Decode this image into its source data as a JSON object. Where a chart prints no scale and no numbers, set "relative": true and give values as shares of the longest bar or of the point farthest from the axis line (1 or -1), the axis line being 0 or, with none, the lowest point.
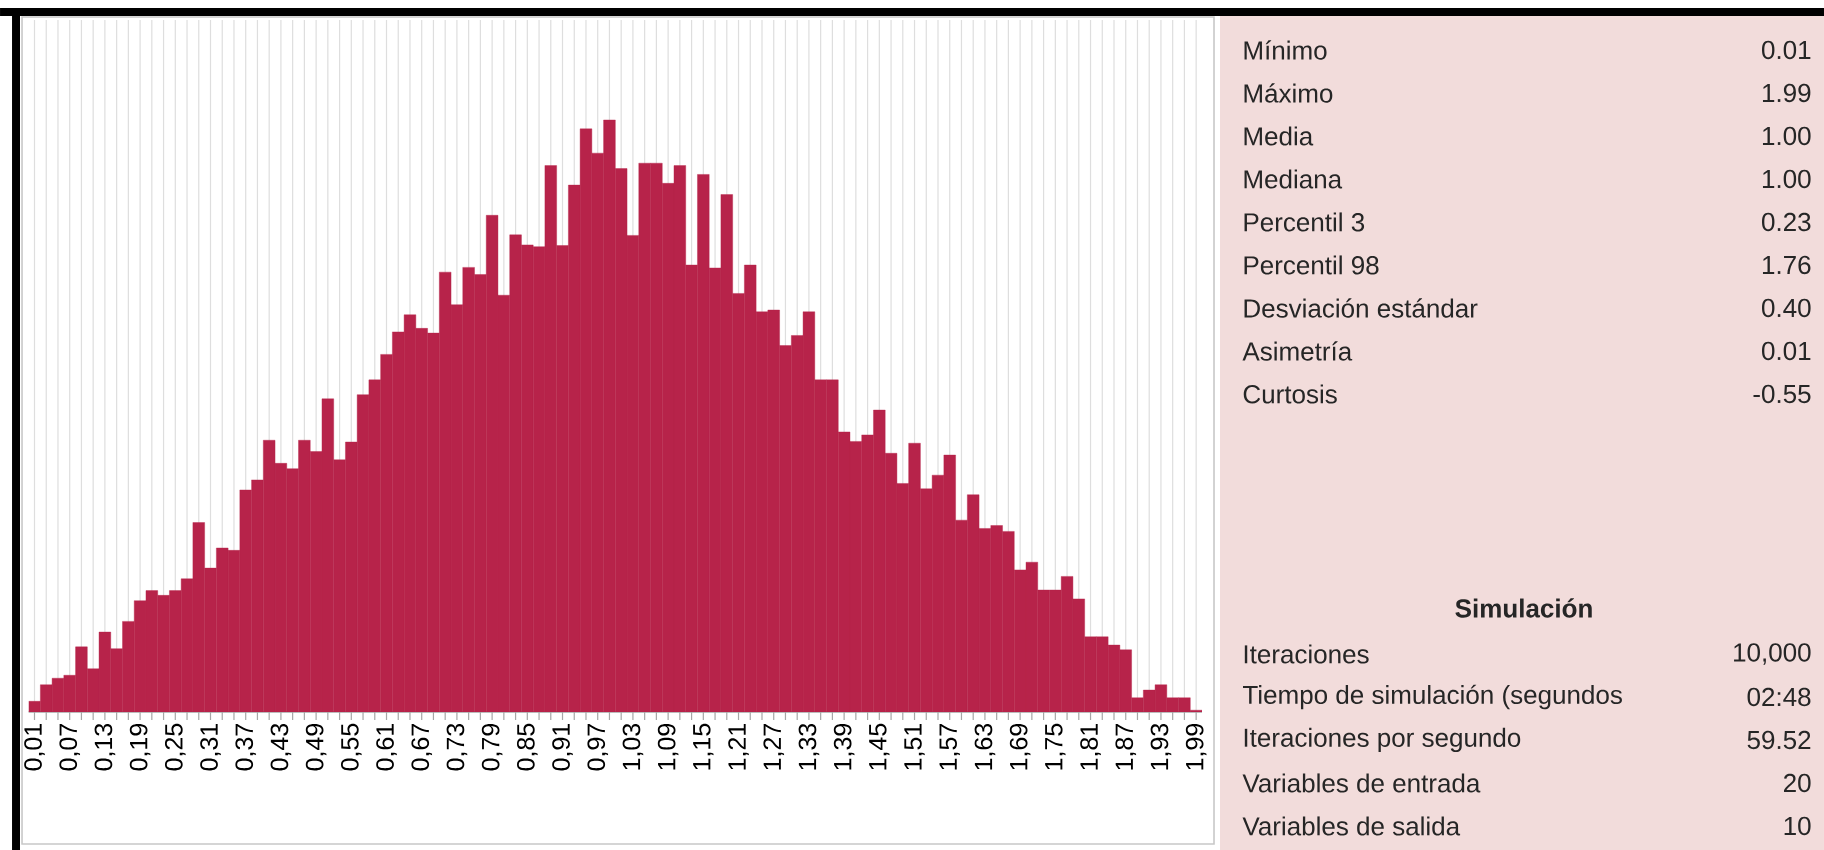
{
  "chart_data": [
    {
      "type": "bar",
      "relative": true,
      "color": "#b7234a",
      "grid": "x",
      "categories": [
        "0,01",
        null,
        null,
        "0,07",
        null,
        null,
        "0,13",
        null,
        null,
        "0,19",
        null,
        null,
        "0,25",
        null,
        null,
        "0,31",
        null,
        null,
        "0,37",
        null,
        null,
        "0,43",
        null,
        null,
        "0,49",
        null,
        null,
        "0,55",
        null,
        null,
        "0,61",
        null,
        null,
        "0,67",
        null,
        null,
        "0,73",
        null,
        null,
        "0,79",
        null,
        null,
        "0,85",
        null,
        null,
        "0,91",
        null,
        null,
        "0,97",
        null,
        null,
        "1,03",
        null,
        null,
        "1,09",
        null,
        null,
        "1,15",
        null,
        null,
        "1,21",
        null,
        null,
        "1,27",
        null,
        null,
        "1,33",
        null,
        null,
        "1,39",
        null,
        null,
        "1,45",
        null,
        null,
        "1,51",
        null,
        null,
        "1,57",
        null,
        null,
        "1,63",
        null,
        null,
        "1,69",
        null,
        null,
        "1,75",
        null,
        null,
        "1,81",
        null,
        null,
        "1,87",
        null,
        null,
        "1,93",
        null,
        null,
        "1,99"
      ],
      "values": [
        0.018,
        0.046,
        0.057,
        0.062,
        0.11,
        0.073,
        0.135,
        0.107,
        0.153,
        0.188,
        0.205,
        0.197,
        0.205,
        0.225,
        0.32,
        0.243,
        0.277,
        0.273,
        0.375,
        0.392,
        0.459,
        0.42,
        0.411,
        0.459,
        0.44,
        0.529,
        0.426,
        0.456,
        0.536,
        0.561,
        0.604,
        0.642,
        0.671,
        0.648,
        0.64,
        0.743,
        0.688,
        0.751,
        0.739,
        0.839,
        0.704,
        0.806,
        0.789,
        0.786,
        0.923,
        0.788,
        0.89,
        0.985,
        0.944,
        1.0,
        0.918,
        0.805,
        0.927,
        0.927,
        0.893,
        0.923,
        0.755,
        0.908,
        0.75,
        0.874,
        0.707,
        0.755,
        0.676,
        0.679,
        0.619,
        0.636,
        0.676,
        0.561,
        0.561,
        0.473,
        0.457,
        0.468,
        0.51,
        0.437,
        0.386,
        0.454,
        0.377,
        0.4,
        0.434,
        0.324,
        0.367,
        0.31,
        0.315,
        0.305,
        0.24,
        0.253,
        0.206,
        0.206,
        0.229,
        0.191,
        0.127,
        0.127,
        0.113,
        0.105,
        0.024,
        0.037,
        0.046,
        0.024,
        0.024,
        0.003
      ]
    },
    {
      "type": "other",
      "annotations": [
        "Mínimo",
        "0.01",
        "Máximo",
        "1.99",
        "Media",
        "1.00",
        "Mediana",
        "1.00",
        "Percentil 3",
        "0.23",
        "Percentil 98",
        "1.76",
        "Desviación estándar",
        "0.40",
        "Asimetría",
        "0.01",
        "Curtosis",
        "-0.55"
      ]
    },
    {
      "type": "other",
      "title": "Simulación",
      "annotations": [
        "Iteraciones",
        "10,000",
        "Tiempo de simulación (segundos",
        "02:48",
        "Iteraciones por segundo",
        "59.52",
        "Variables de entrada",
        "20",
        "Variables de salida",
        "10"
      ]
    }
  ]
}
